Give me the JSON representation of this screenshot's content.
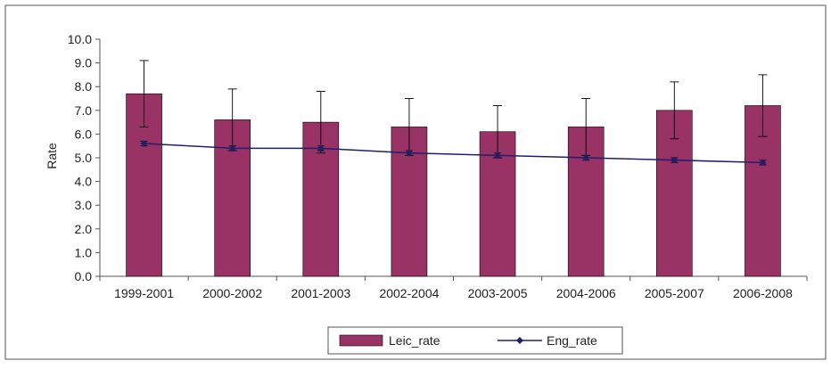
{
  "chart_data": {
    "type": "bar",
    "categories": [
      "1999-2001",
      "2000-2002",
      "2001-2003",
      "2002-2004",
      "2003-2005",
      "2004-2006",
      "2005-2007",
      "2006-2008"
    ],
    "ylabel": "Rate",
    "ylim": [
      0,
      10
    ],
    "yticks": [
      "0.0",
      "1.0",
      "2.0",
      "3.0",
      "4.0",
      "5.0",
      "6.0",
      "7.0",
      "8.0",
      "9.0",
      "10.0"
    ],
    "grid": false,
    "legend_position": "bottom",
    "series": [
      {
        "name": "Leic_rate",
        "kind": "bar",
        "color": "#993366",
        "values": [
          7.7,
          6.6,
          6.5,
          6.3,
          6.1,
          6.3,
          7.0,
          7.2
        ],
        "error_low": [
          6.3,
          5.3,
          5.2,
          5.1,
          5.0,
          5.1,
          5.8,
          5.9
        ],
        "error_high": [
          9.1,
          7.9,
          7.8,
          7.5,
          7.2,
          7.5,
          8.2,
          8.5
        ]
      },
      {
        "name": "Eng_rate",
        "kind": "line",
        "color": "#1f1f6e",
        "values": [
          5.6,
          5.4,
          5.4,
          5.2,
          5.1,
          5.0,
          4.9,
          4.8
        ],
        "error_low": [
          5.5,
          5.3,
          5.3,
          5.1,
          5.0,
          4.9,
          4.8,
          4.7
        ],
        "error_high": [
          5.7,
          5.5,
          5.5,
          5.3,
          5.2,
          5.1,
          5.0,
          4.9
        ]
      }
    ]
  }
}
